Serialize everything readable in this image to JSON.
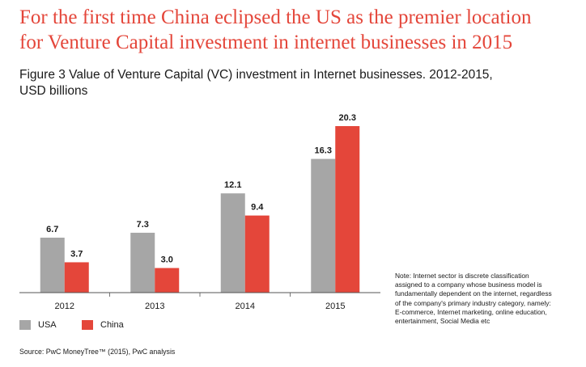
{
  "headline": {
    "line1": "For the first time China eclipsed the US as the premier location",
    "line2": "for Venture Capital investment in internet businesses in 2015"
  },
  "figure_title": {
    "line1": "Figure 3 Value of Venture Capital (VC) investment in Internet businesses. 2012-2015,",
    "line2": "USD billions"
  },
  "note": {
    "line1": "Note: Internet sector is discrete classification",
    "line2": "assigned to a company whose business model is",
    "line3": "fundamentally dependent on the internet, regardless",
    "line4": "of the company's primary industry category, namely:",
    "line5": "E-commerce, Internet marketing, online education,",
    "line6": "entertainment, Social Media etc"
  },
  "source": "Source: PwC MoneyTree™ (2015), PwC analysis",
  "colors": {
    "usa": "#a6a6a6",
    "china": "#e4463a",
    "headline": "#e4463a",
    "axis": "#555555"
  },
  "chart_data": {
    "type": "bar",
    "title": "Figure 3 Value of Venture Capital (VC) investment in Internet businesses. 2012-2015, USD billions",
    "categories": [
      "2012",
      "2013",
      "2014",
      "2015"
    ],
    "series": [
      {
        "name": "USA",
        "values": [
          6.7,
          7.3,
          12.1,
          16.3
        ]
      },
      {
        "name": "China",
        "values": [
          3.7,
          3.0,
          9.4,
          20.3
        ]
      }
    ],
    "ylim": [
      0,
      20.3
    ],
    "grid": false,
    "legend_position": "bottom-left",
    "data_labels": true
  }
}
